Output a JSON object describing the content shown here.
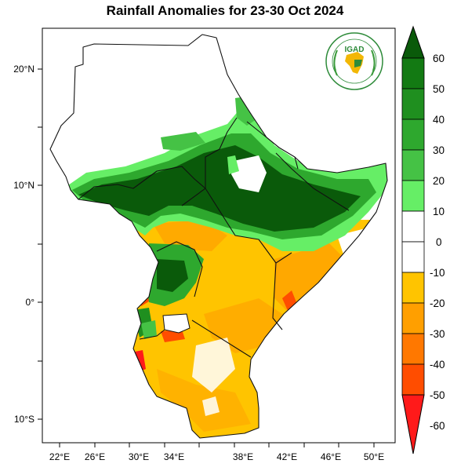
{
  "title": "Rainfall Anomalies for 23-30 Oct 2024",
  "logo": {
    "text": "IGAD",
    "colors": {
      "ring": "#2e8b3a",
      "africa": "#f2b705",
      "leaves": "#3a9a3a"
    }
  },
  "map": {
    "lon_ticks": [
      "22°E",
      "26°E",
      "30°E",
      "34°E",
      "38°E",
      "42°E",
      "46°E",
      "50°E"
    ],
    "lat_ticks": [
      "20°N",
      "10°N",
      "0°",
      "10°S"
    ]
  },
  "colorbar": {
    "labels": [
      "60",
      "50",
      "40",
      "30",
      "20",
      "10",
      "0",
      "-10",
      "-20",
      "-30",
      "-40",
      "-50",
      "-60"
    ],
    "colors": [
      "#0a5a0a",
      "#137a13",
      "#1f8f1f",
      "#2ea82e",
      "#45c245",
      "#66ee66",
      "#ffffff",
      "#ffffff",
      "#ffc400",
      "#ff9f00",
      "#ff7800",
      "#ff4d00",
      "#ff1a1a"
    ]
  },
  "anomaly_colors": {
    "wet_60": "#0a5a0a",
    "wet_40": "#1f8f1f",
    "wet_20": "#45c245",
    "wet_10": "#66ee66",
    "neutral": "#ffffff",
    "dry_10": "#ffc400",
    "dry_20": "#ff9f00",
    "dry_40": "#ff7800",
    "dry_60": "#ff1a1a"
  }
}
